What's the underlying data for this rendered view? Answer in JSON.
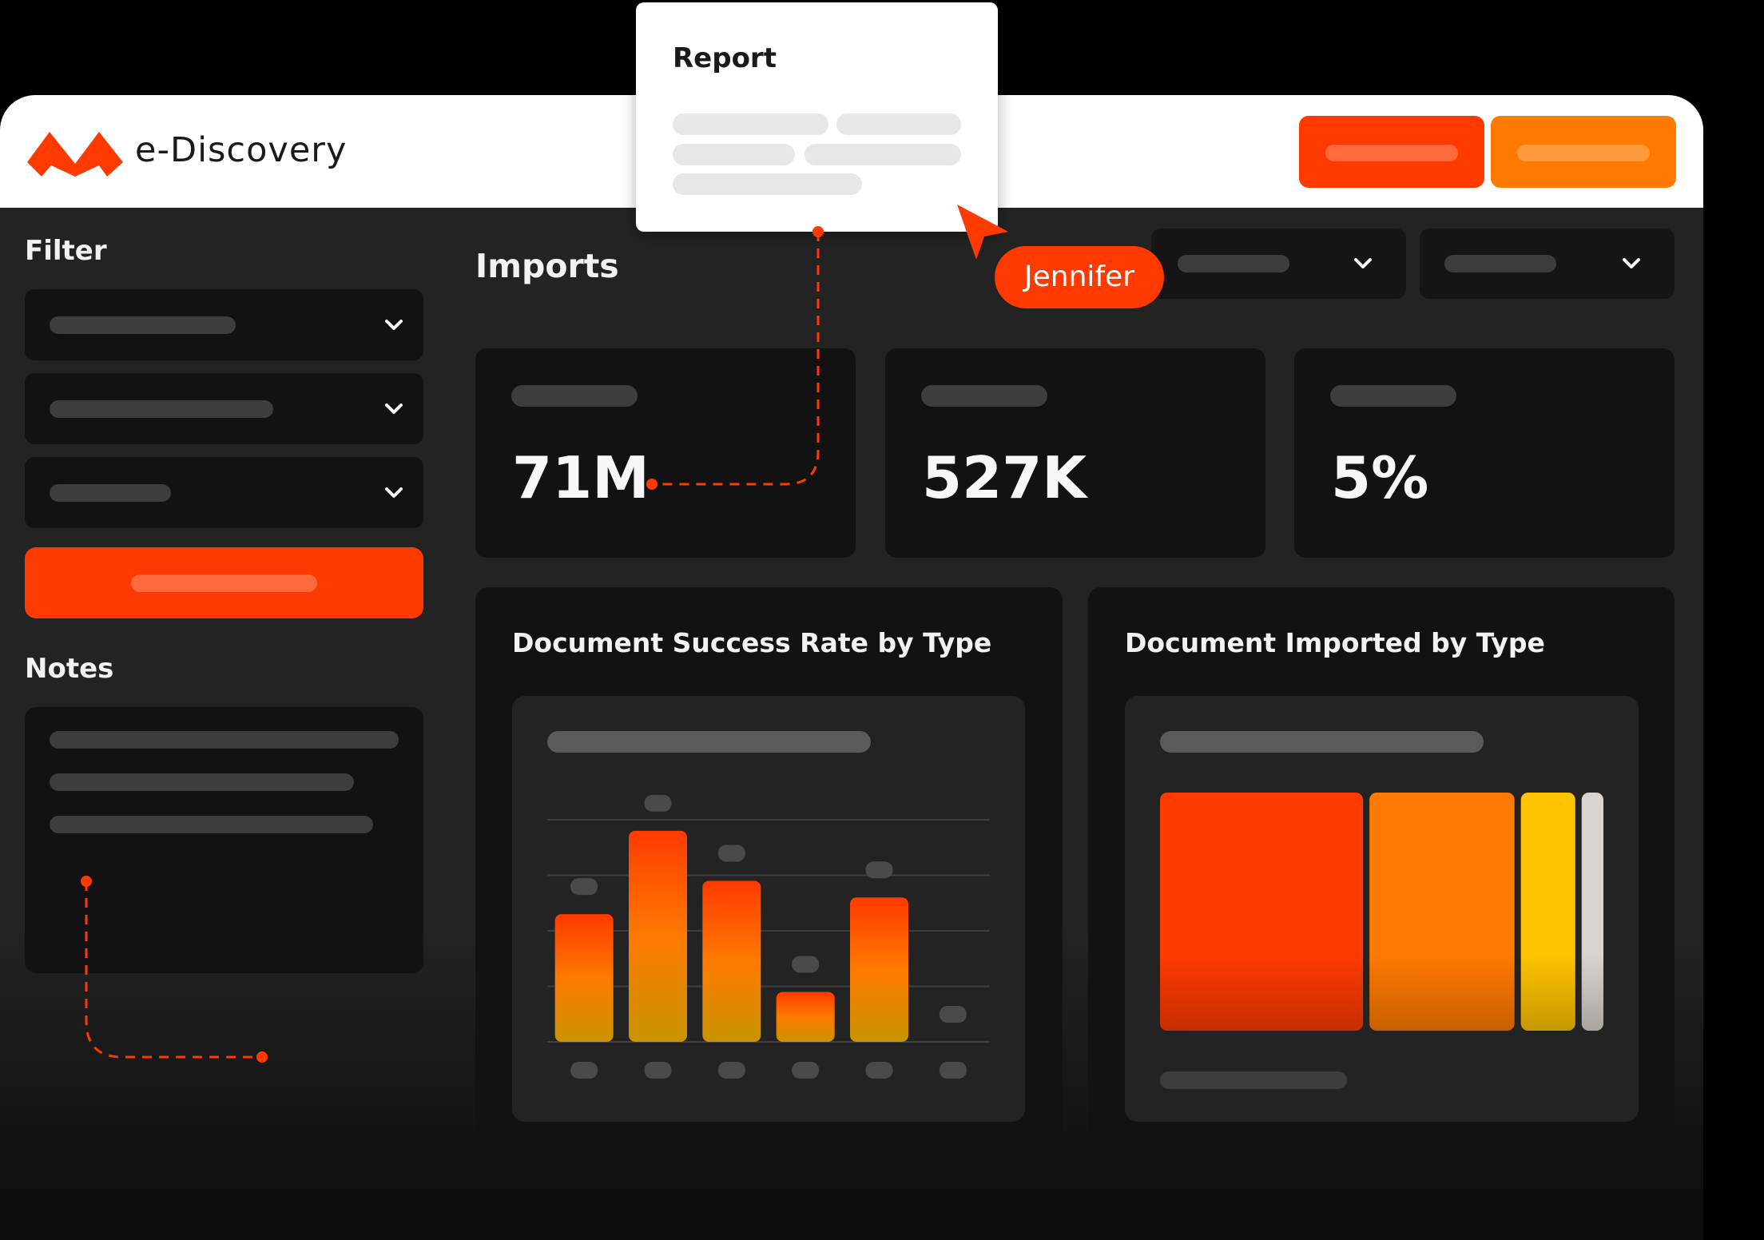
{
  "header": {
    "app_title": "e-Discovery"
  },
  "sidebar": {
    "filter_title": "Filter",
    "notes_title": "Notes"
  },
  "main": {
    "title": "Imports"
  },
  "stats": [
    {
      "value": "71M"
    },
    {
      "value": "527K"
    },
    {
      "value": "5%"
    }
  ],
  "popup": {
    "title": "Report"
  },
  "cursor": {
    "user": "Jennifer"
  },
  "charts": {
    "success_title": "Document Success Rate by Type",
    "imported_title": "Document Imported by Type"
  },
  "colors": {
    "accent": "#ff3a00",
    "accent_orange": "#ff7a00",
    "yellow": "#ffc300",
    "panel": "#121212",
    "background": "#232323"
  },
  "icons": {
    "logo": "m-logo-icon",
    "dropdown": "chevron-down-icon",
    "cursor": "pointer-arrow-icon"
  },
  "chart_data": [
    {
      "type": "bar",
      "title": "Document Success Rate by Type",
      "categories": [
        "",
        "",
        "",
        "",
        "",
        ""
      ],
      "values": [
        23,
        38,
        29,
        9,
        26,
        0
      ],
      "ylim": [
        0,
        40
      ],
      "grid": true
    },
    {
      "type": "bar",
      "title": "Document Imported by Type",
      "values": [
        56,
        40,
        15,
        6
      ],
      "colors": [
        "#ff3a00",
        "#ff7a00",
        "#ffc300",
        "#d9d4cf"
      ]
    }
  ]
}
